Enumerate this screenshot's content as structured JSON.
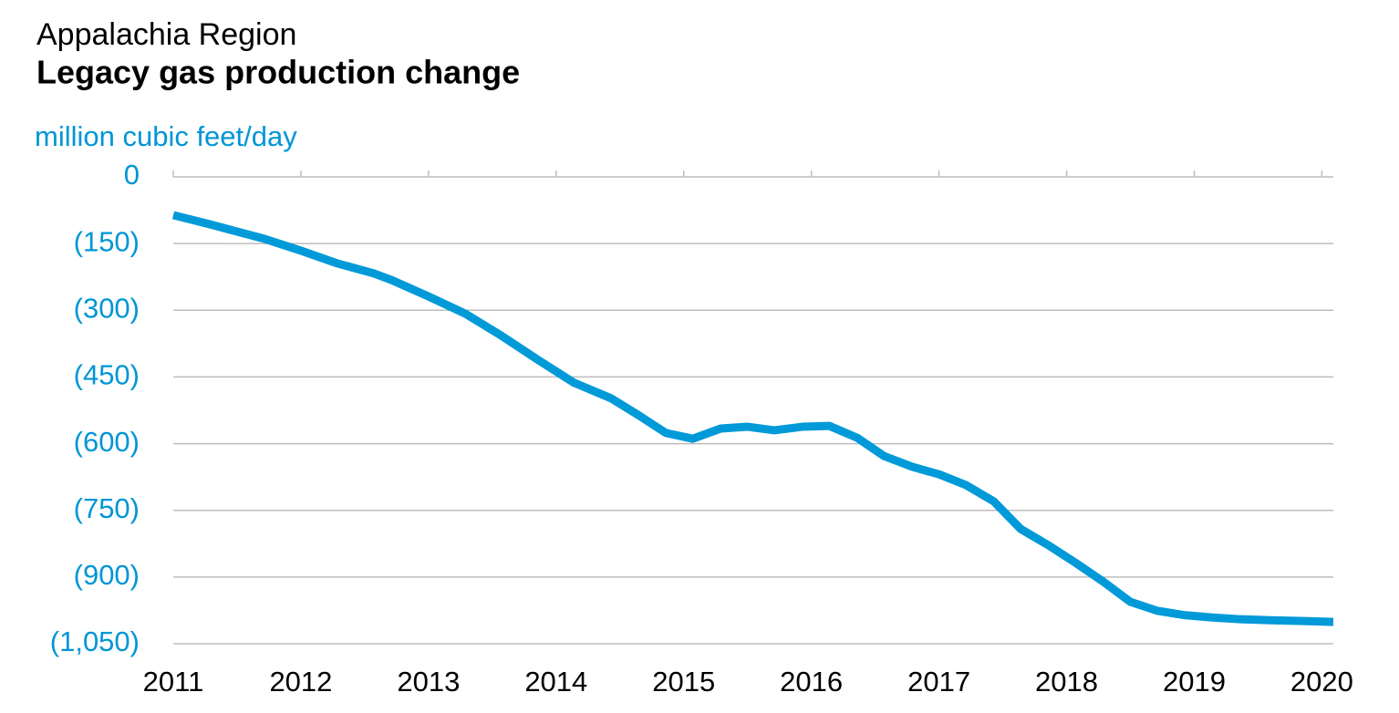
{
  "chart_data": {
    "type": "line",
    "title": "Appalachia Region",
    "subtitle": "Legacy gas production change",
    "y_label": "million cubic feet/day",
    "x": [
      2011,
      2011.29,
      2011.5,
      2011.71,
      2012,
      2012.29,
      2012.57,
      2012.71,
      2013,
      2013.29,
      2013.57,
      2013.86,
      2014.14,
      2014.43,
      2014.64,
      2014.86,
      2015.07,
      2015.29,
      2015.5,
      2015.71,
      2015.93,
      2016.14,
      2016.36,
      2016.57,
      2016.79,
      2017,
      2017.21,
      2017.43,
      2017.64,
      2017.86,
      2018.07,
      2018.29,
      2018.5,
      2018.71,
      2018.93,
      2019.14,
      2019.36,
      2019.57,
      2019.86,
      2020.09
    ],
    "series": [
      {
        "name": "Legacy gas production change",
        "color": "#009ad9",
        "values": [
          -86,
          -107,
          -123,
          -139,
          -166,
          -195,
          -217,
          -232,
          -269,
          -308,
          -357,
          -412,
          -463,
          -498,
          -535,
          -576,
          -589,
          -566,
          -562,
          -570,
          -562,
          -560,
          -587,
          -628,
          -652,
          -669,
          -693,
          -730,
          -792,
          -829,
          -868,
          -911,
          -956,
          -976,
          -986,
          -991,
          -995,
          -997,
          -999,
          -1001
        ]
      }
    ],
    "xlim": [
      2011,
      2020.09
    ],
    "xticks": [
      2011,
      2012,
      2013,
      2014,
      2015,
      2016,
      2017,
      2018,
      2019,
      2020
    ],
    "ylim": [
      -1050,
      0
    ],
    "yticks": [
      0,
      {
        "value": -150,
        "label": "(150)"
      },
      {
        "value": -300,
        "label": "(300)"
      },
      {
        "value": -450,
        "label": "(450)"
      },
      {
        "value": -600,
        "label": "(600)"
      },
      {
        "value": -750,
        "label": "(750)"
      },
      {
        "value": -900,
        "label": "(900)"
      },
      {
        "value": -1050,
        "label": "(1,050)"
      }
    ],
    "grid": true
  }
}
